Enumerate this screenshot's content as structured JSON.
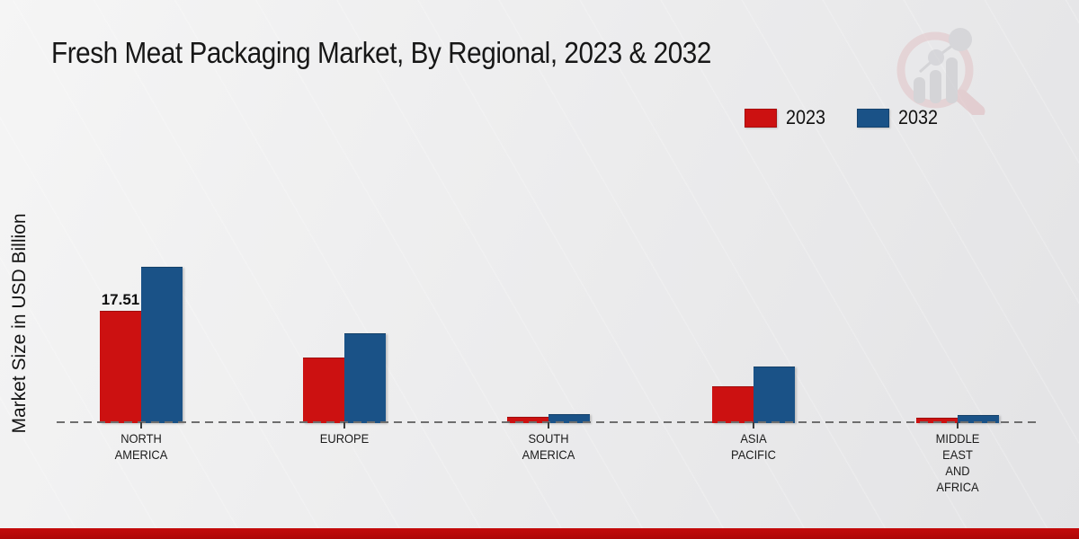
{
  "title": "Fresh Meat Packaging Market, By Regional, 2023 & 2032",
  "ylabel": "Market Size in USD Billion",
  "legend": {
    "items": [
      {
        "label": "2023",
        "color": "#cc1111"
      },
      {
        "label": "2032",
        "color": "#1a5287"
      }
    ]
  },
  "chart_data": {
    "type": "bar",
    "title": "Fresh Meat Packaging Market, By Regional, 2023 & 2032",
    "xlabel": "",
    "ylabel": "Market Size in USD Billion",
    "categories": [
      "NORTH AMERICA",
      "EUROPE",
      "SOUTH AMERICA",
      "ASIA PACIFIC",
      "MIDDLE EAST AND AFRICA"
    ],
    "category_label_lines": [
      [
        "NORTH",
        "AMERICA"
      ],
      [
        "EUROPE"
      ],
      [
        "SOUTH",
        "AMERICA"
      ],
      [
        "ASIA",
        "PACIFIC"
      ],
      [
        "MIDDLE",
        "EAST",
        "AND",
        "AFRICA"
      ]
    ],
    "series": [
      {
        "name": "2023",
        "color": "#cc1111",
        "values": [
          17.51,
          10.2,
          0.9,
          5.6,
          0.75
        ]
      },
      {
        "name": "2032",
        "color": "#1a5287",
        "values": [
          24.5,
          14.0,
          1.3,
          8.8,
          1.1
        ]
      }
    ],
    "data_labels": [
      {
        "series_index": 0,
        "category_index": 0,
        "text": "17.51"
      }
    ],
    "ylim": [
      0,
      27
    ],
    "grid": false,
    "legend_position": "top-right",
    "baseline_style": "dashed"
  },
  "watermark": {
    "name": "market-research-future-logo"
  },
  "footer": {
    "color": "#bd0a0a"
  }
}
